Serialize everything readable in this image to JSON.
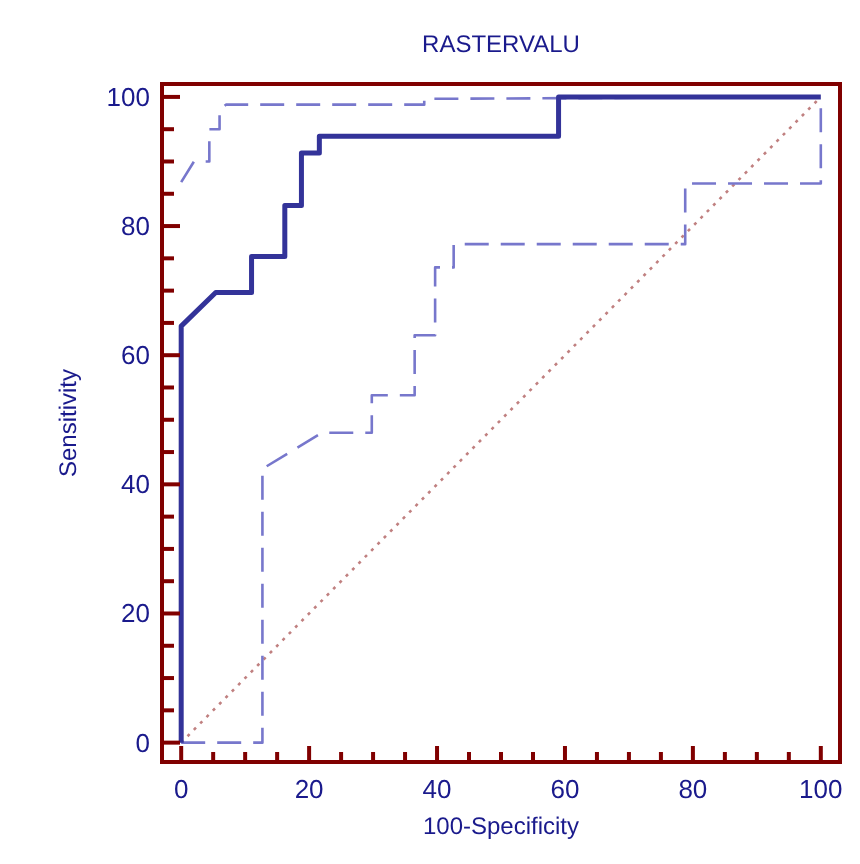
{
  "chart_data": {
    "type": "line",
    "title": "RASTERVALU",
    "xlabel": "100-Specificity",
    "ylabel": "Sensitivity",
    "xlim": [
      -3,
      103
    ],
    "ylim": [
      -3,
      102
    ],
    "xticks": [
      0,
      {
        "value": 5,
        "label": null
      },
      {
        "value": 10,
        "label": null
      },
      {
        "value": 15,
        "label": null
      },
      20,
      {
        "value": 25,
        "label": null
      },
      {
        "value": 30,
        "label": null
      },
      {
        "value": 35,
        "label": null
      },
      40,
      {
        "value": 45,
        "label": null
      },
      {
        "value": 50,
        "label": null
      },
      {
        "value": 55,
        "label": null
      },
      60,
      {
        "value": 65,
        "label": null
      },
      {
        "value": 70,
        "label": null
      },
      {
        "value": 75,
        "label": null
      },
      80,
      {
        "value": 85,
        "label": null
      },
      {
        "value": 90,
        "label": null
      },
      {
        "value": 95,
        "label": null
      },
      100
    ],
    "yticks": [
      0,
      {
        "value": 5,
        "label": null
      },
      {
        "value": 10,
        "label": null
      },
      {
        "value": 15,
        "label": null
      },
      20,
      {
        "value": 25,
        "label": null
      },
      {
        "value": 30,
        "label": null
      },
      {
        "value": 35,
        "label": null
      },
      40,
      {
        "value": 45,
        "label": null
      },
      {
        "value": 50,
        "label": null
      },
      {
        "value": 55,
        "label": null
      },
      60,
      {
        "value": 65,
        "label": null
      },
      {
        "value": 70,
        "label": null
      },
      {
        "value": 75,
        "label": null
      },
      80,
      {
        "value": 85,
        "label": null
      },
      {
        "value": 90,
        "label": null
      },
      {
        "value": 95,
        "label": null
      },
      100
    ],
    "grid": false,
    "marker": "none",
    "series": [
      {
        "color": "#c08080",
        "line_style": "dotted",
        "x": [
          0,
          100
        ],
        "values": [
          0,
          100
        ]
      },
      {
        "color": "#7777cc",
        "line_style": "dashed",
        "x": [
          0,
          12.7,
          12.7,
          22,
          29.8,
          29.8,
          36.5,
          36.5,
          39.7,
          39.7,
          42.6,
          42.6,
          78.8,
          78.8,
          100,
          100
        ],
        "values": [
          0,
          0,
          42.4,
          48,
          48,
          53.8,
          53.8,
          63.1,
          63.1,
          73.6,
          73.6,
          77.2,
          77.2,
          86.6,
          86.6,
          100
        ]
      },
      {
        "color": "#7777cc",
        "line_style": "dashed",
        "x": [
          0,
          2,
          4.4,
          4.4,
          6,
          6,
          7,
          38,
          38,
          100
        ],
        "values": [
          86.8,
          90,
          90,
          95,
          95,
          98,
          98.8,
          98.8,
          99.7,
          100
        ]
      },
      {
        "color": "#333399",
        "line_style": "solid",
        "x": [
          0,
          0,
          5.4,
          11,
          11,
          16.2,
          16.2,
          18.8,
          18.8,
          21.6,
          21.6,
          59,
          59,
          100
        ],
        "values": [
          0,
          64.5,
          69.7,
          69.7,
          75.3,
          75.3,
          83.2,
          83.2,
          91.3,
          91.3,
          93.9,
          93.9,
          100,
          100
        ]
      }
    ]
  }
}
